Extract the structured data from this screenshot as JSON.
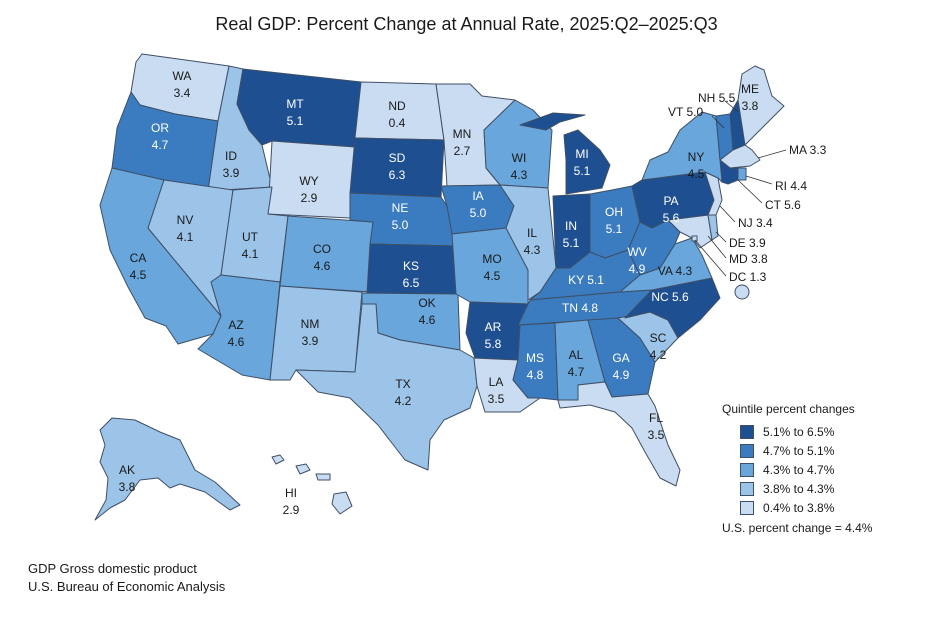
{
  "title": "Real GDP: Percent Change at Annual Rate, 2025:Q2–2025:Q3",
  "colors": {
    "q5": "#1d4f91",
    "q4": "#3a7cbf",
    "q3": "#68a6db",
    "q2": "#9cc3e8",
    "q1": "#c9dcf1",
    "border": "#3f4f66"
  },
  "states": {
    "WA": {
      "abbr": "WA",
      "value": "3.4",
      "quintile": "q1"
    },
    "OR": {
      "abbr": "OR",
      "value": "4.7",
      "quintile": "q4"
    },
    "CA": {
      "abbr": "CA",
      "value": "4.5",
      "quintile": "q3"
    },
    "ID": {
      "abbr": "ID",
      "value": "3.9",
      "quintile": "q2"
    },
    "NV": {
      "abbr": "NV",
      "value": "4.1",
      "quintile": "q2"
    },
    "MT": {
      "abbr": "MT",
      "value": "5.1",
      "quintile": "q5"
    },
    "WY": {
      "abbr": "WY",
      "value": "2.9",
      "quintile": "q1"
    },
    "UT": {
      "abbr": "UT",
      "value": "4.1",
      "quintile": "q2"
    },
    "AZ": {
      "abbr": "AZ",
      "value": "4.6",
      "quintile": "q3"
    },
    "CO": {
      "abbr": "CO",
      "value": "4.6",
      "quintile": "q3"
    },
    "NM": {
      "abbr": "NM",
      "value": "3.9",
      "quintile": "q2"
    },
    "ND": {
      "abbr": "ND",
      "value": "0.4",
      "quintile": "q1"
    },
    "SD": {
      "abbr": "SD",
      "value": "6.3",
      "quintile": "q5"
    },
    "NE": {
      "abbr": "NE",
      "value": "5.0",
      "quintile": "q4"
    },
    "KS": {
      "abbr": "KS",
      "value": "6.5",
      "quintile": "q5"
    },
    "OK": {
      "abbr": "OK",
      "value": "4.6",
      "quintile": "q3"
    },
    "TX": {
      "abbr": "TX",
      "value": "4.2",
      "quintile": "q2"
    },
    "MN": {
      "abbr": "MN",
      "value": "2.7",
      "quintile": "q1"
    },
    "IA": {
      "abbr": "IA",
      "value": "5.0",
      "quintile": "q4"
    },
    "MO": {
      "abbr": "MO",
      "value": "4.5",
      "quintile": "q3"
    },
    "AR": {
      "abbr": "AR",
      "value": "5.8",
      "quintile": "q5"
    },
    "LA": {
      "abbr": "LA",
      "value": "3.5",
      "quintile": "q1"
    },
    "WI": {
      "abbr": "WI",
      "value": "4.3",
      "quintile": "q3"
    },
    "IL": {
      "abbr": "IL",
      "value": "4.3",
      "quintile": "q2"
    },
    "MI": {
      "abbr": "MI",
      "value": "5.1",
      "quintile": "q5"
    },
    "IN": {
      "abbr": "IN",
      "value": "5.1",
      "quintile": "q5"
    },
    "OH": {
      "abbr": "OH",
      "value": "5.1",
      "quintile": "q4"
    },
    "KY": {
      "abbr": "KY",
      "value": "5.1",
      "quintile": "q4"
    },
    "TN": {
      "abbr": "TN",
      "value": "4.8",
      "quintile": "q4"
    },
    "MS": {
      "abbr": "MS",
      "value": "4.8",
      "quintile": "q4"
    },
    "AL": {
      "abbr": "AL",
      "value": "4.7",
      "quintile": "q3"
    },
    "GA": {
      "abbr": "GA",
      "value": "4.9",
      "quintile": "q4"
    },
    "FL": {
      "abbr": "FL",
      "value": "3.5",
      "quintile": "q1"
    },
    "SC": {
      "abbr": "SC",
      "value": "4.2",
      "quintile": "q2"
    },
    "NC": {
      "abbr": "NC",
      "value": "5.6",
      "quintile": "q5"
    },
    "VA": {
      "abbr": "VA",
      "value": "4.3",
      "quintile": "q3"
    },
    "WV": {
      "abbr": "WV",
      "value": "4.9",
      "quintile": "q4"
    },
    "PA": {
      "abbr": "PA",
      "value": "5.6",
      "quintile": "q5"
    },
    "NY": {
      "abbr": "NY",
      "value": "4.5",
      "quintile": "q3"
    },
    "ME": {
      "abbr": "ME",
      "value": "3.8",
      "quintile": "q1"
    },
    "NH": {
      "abbr": "NH",
      "value": "5.5",
      "quintile": "q5"
    },
    "VT": {
      "abbr": "VT",
      "value": "5.0",
      "quintile": "q4"
    },
    "MA": {
      "abbr": "MA",
      "value": "3.3",
      "quintile": "q1"
    },
    "RI": {
      "abbr": "RI",
      "value": "4.4",
      "quintile": "q3"
    },
    "CT": {
      "abbr": "CT",
      "value": "5.6",
      "quintile": "q5"
    },
    "NJ": {
      "abbr": "NJ",
      "value": "3.4",
      "quintile": "q1"
    },
    "DE": {
      "abbr": "DE",
      "value": "3.9",
      "quintile": "q2"
    },
    "MD": {
      "abbr": "MD",
      "value": "3.8",
      "quintile": "q1"
    },
    "DC": {
      "abbr": "DC",
      "value": "1.3",
      "quintile": "q1"
    },
    "AK": {
      "abbr": "AK",
      "value": "3.8",
      "quintile": "q2"
    },
    "HI": {
      "abbr": "HI",
      "value": "2.9",
      "quintile": "q1"
    }
  },
  "legend": {
    "title": "Quintile percent changes",
    "items": [
      {
        "label": "5.1% to 6.5%",
        "quintile": "q5"
      },
      {
        "label": "4.7% to 5.1%",
        "quintile": "q4"
      },
      {
        "label": "4.3% to 4.7%",
        "quintile": "q3"
      },
      {
        "label": "3.8% to 4.3%",
        "quintile": "q2"
      },
      {
        "label": "0.4% to 3.8%",
        "quintile": "q1"
      }
    ],
    "us_total": "U.S. percent change = 4.4%"
  },
  "footer": {
    "line1": "GDP Gross domestic product",
    "line2": "U.S. Bureau of Economic Analysis"
  }
}
